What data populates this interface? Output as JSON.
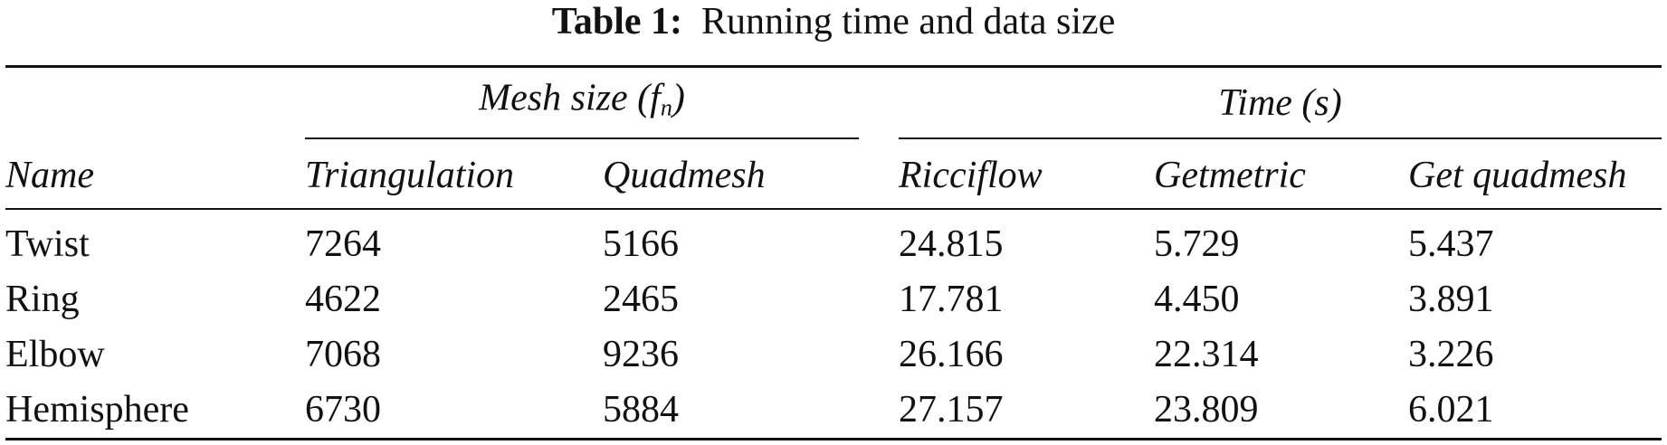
{
  "caption": {
    "label": "Table 1:",
    "text": "Running time and data size"
  },
  "table": {
    "groups": [
      {
        "parts": [
          "Mesh size (",
          "f",
          "n",
          ")"
        ]
      },
      {
        "parts": [
          "Time (",
          "s",
          ")"
        ]
      }
    ],
    "columns": [
      "Name",
      "Triangulation",
      "Quadmesh",
      "Ricciflow",
      "Getmetric",
      "Get quadmesh"
    ],
    "rows": [
      [
        "Twist",
        "7264",
        "5166",
        "24.815",
        "5.729",
        "5.437"
      ],
      [
        "Ring",
        "4622",
        "2465",
        "17.781",
        "4.450",
        "3.891"
      ],
      [
        "Elbow",
        "7068",
        "9236",
        "26.166",
        "22.314",
        "3.226"
      ],
      [
        "Hemisphere",
        "6730",
        "5884",
        "27.157",
        "23.809",
        "6.021"
      ]
    ]
  }
}
